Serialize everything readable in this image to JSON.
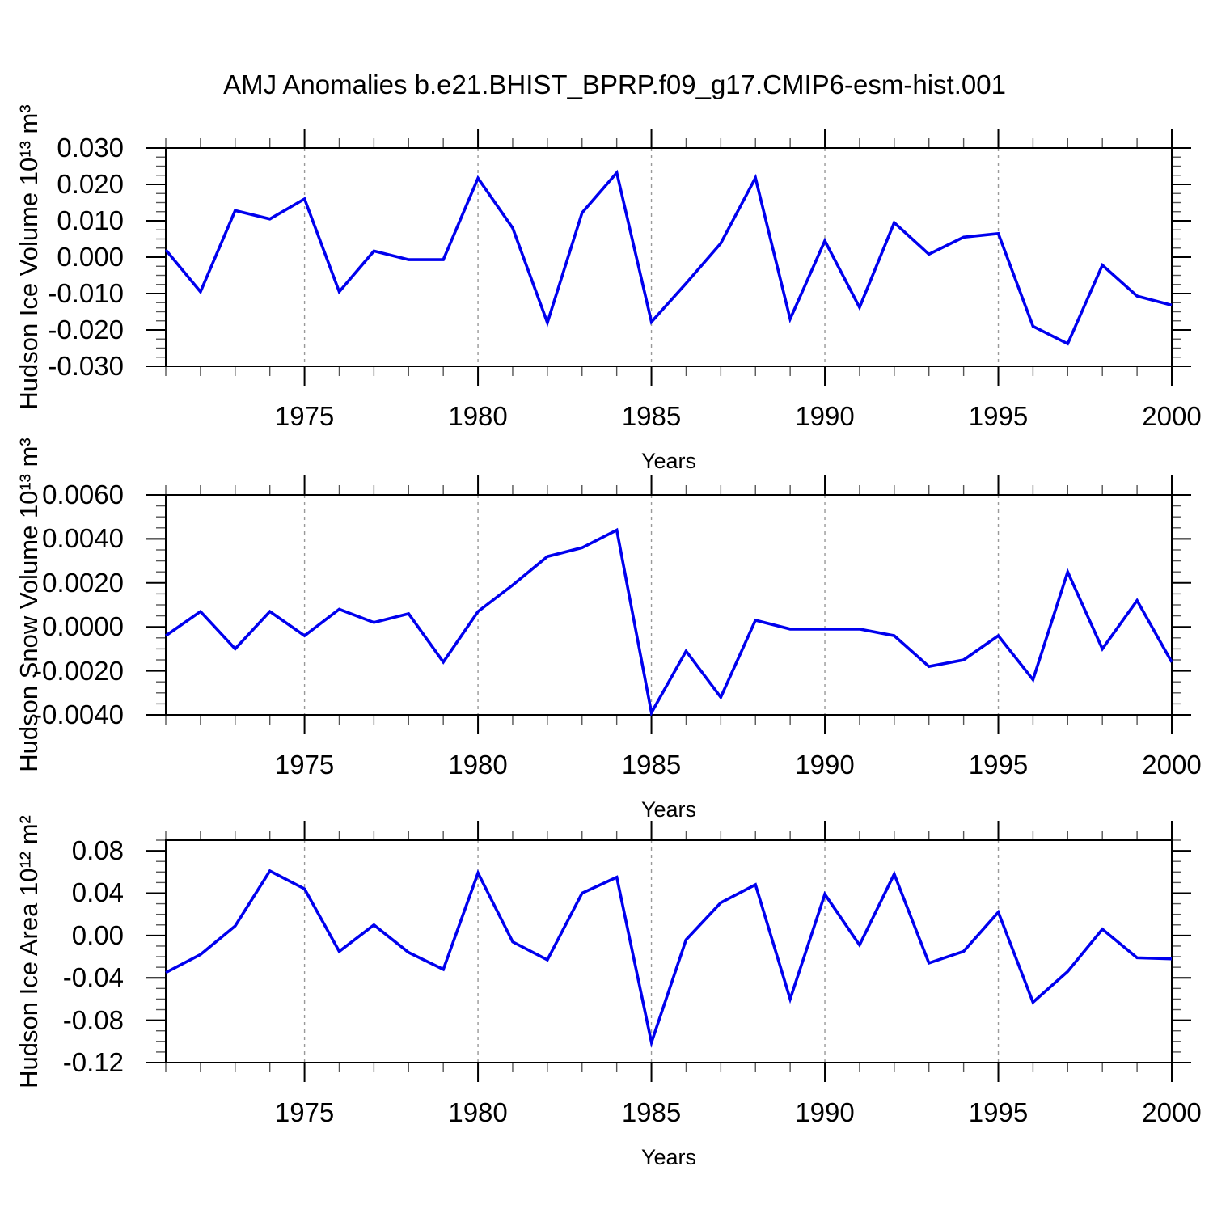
{
  "title": "AMJ Anomalies b.e21.BHIST_BPRP.f09_g17.CMIP6-esm-hist.001",
  "colors": {
    "line": "#0000ee",
    "axis": "#000000",
    "grid": "#999999",
    "minor_tick": "#555555",
    "background": "#ffffff"
  },
  "chart_data": [
    {
      "type": "line",
      "ylabel": "Hudson Ice Volume 10¹³ m³",
      "xlabel": "Years",
      "x": [
        1971,
        1972,
        1973,
        1974,
        1975,
        1976,
        1977,
        1978,
        1979,
        1980,
        1981,
        1982,
        1983,
        1984,
        1985,
        1986,
        1987,
        1988,
        1989,
        1990,
        1991,
        1992,
        1993,
        1994,
        1995,
        1996,
        1997,
        1998,
        1999,
        2000
      ],
      "values": [
        0.002,
        -0.0095,
        0.0128,
        0.0105,
        0.016,
        -0.0095,
        0.0017,
        -0.0007,
        -0.0007,
        0.0217,
        0.008,
        -0.018,
        0.0122,
        0.0232,
        -0.0178,
        -0.0072,
        0.0038,
        0.0218,
        -0.017,
        0.0045,
        -0.0138,
        0.0095,
        0.0008,
        0.0055,
        0.0065,
        -0.019,
        -0.0238,
        -0.0022,
        -0.0107,
        -0.0132
      ],
      "xlim": [
        1971,
        2000
      ],
      "ylim": [
        -0.03,
        0.03
      ],
      "ytick_values": [
        0.03,
        0.02,
        0.01,
        0.0,
        -0.01,
        -0.02,
        -0.03
      ],
      "ytick_labels": [
        "0.030",
        "0.020",
        "0.010",
        "0.000",
        "-0.010",
        "-0.020",
        "-0.030"
      ],
      "y_minor_step": 0.0025,
      "xtick_years": [
        1975,
        1980,
        1985,
        1990,
        1995,
        2000
      ],
      "xtick_labels": [
        "1975",
        "1980",
        "1985",
        "1990",
        "1995",
        "2000"
      ],
      "x_minor_step": 1,
      "grid_years": [
        1975,
        1980,
        1985,
        1990,
        1995
      ],
      "line_color": "#0000ee"
    },
    {
      "type": "line",
      "ylabel": "Hudson Snow Volume 10¹³ m³",
      "xlabel": "Years",
      "x": [
        1971,
        1972,
        1973,
        1974,
        1975,
        1976,
        1977,
        1978,
        1979,
        1980,
        1981,
        1982,
        1983,
        1984,
        1985,
        1986,
        1987,
        1988,
        1989,
        1990,
        1991,
        1992,
        1993,
        1994,
        1995,
        1996,
        1997,
        1998,
        1999,
        2000
      ],
      "values": [
        -0.0004,
        0.0007,
        -0.001,
        0.0007,
        -0.0004,
        0.0008,
        0.0002,
        0.0006,
        -0.0016,
        0.0007,
        0.0019,
        0.0032,
        0.0036,
        0.0044,
        -0.0039,
        -0.0011,
        -0.0032,
        0.0003,
        -0.0001,
        -0.0001,
        -0.0001,
        -0.0004,
        -0.0018,
        -0.0015,
        -0.0004,
        -0.0024,
        0.0025,
        -0.001,
        0.0012,
        -0.0016
      ],
      "xlim": [
        1971,
        2000
      ],
      "ylim": [
        -0.004,
        0.006
      ],
      "ytick_values": [
        0.006,
        0.004,
        0.002,
        0.0,
        -0.002,
        -0.004
      ],
      "ytick_labels": [
        "0.0060",
        "0.0040",
        "0.0020",
        "0.0000",
        "-0.0020",
        "-0.0040"
      ],
      "y_minor_step": 0.0005,
      "xtick_years": [
        1975,
        1980,
        1985,
        1990,
        1995,
        2000
      ],
      "xtick_labels": [
        "1975",
        "1980",
        "1985",
        "1990",
        "1995",
        "2000"
      ],
      "x_minor_step": 1,
      "grid_years": [
        1975,
        1980,
        1985,
        1990,
        1995
      ],
      "line_color": "#0000ee"
    },
    {
      "type": "line",
      "ylabel": "Hudson Ice Area 10¹² m²",
      "xlabel": "Years",
      "x": [
        1971,
        1972,
        1973,
        1974,
        1975,
        1976,
        1977,
        1978,
        1979,
        1980,
        1981,
        1982,
        1983,
        1984,
        1985,
        1986,
        1987,
        1988,
        1989,
        1990,
        1991,
        1992,
        1993,
        1994,
        1995,
        1996,
        1997,
        1998,
        1999,
        2000
      ],
      "values": [
        -0.035,
        -0.018,
        0.009,
        0.061,
        0.044,
        -0.015,
        0.01,
        -0.016,
        -0.032,
        0.059,
        -0.006,
        -0.023,
        0.04,
        0.055,
        -0.101,
        -0.004,
        0.031,
        0.048,
        -0.06,
        0.039,
        -0.009,
        0.058,
        -0.026,
        -0.015,
        0.022,
        -0.063,
        -0.034,
        0.006,
        -0.021,
        -0.022
      ],
      "xlim": [
        1971,
        2000
      ],
      "ylim": [
        -0.12,
        0.09
      ],
      "ytick_values": [
        0.08,
        0.04,
        0.0,
        -0.04,
        -0.08,
        -0.12
      ],
      "ytick_labels": [
        "0.08",
        "0.04",
        "0.00",
        "-0.04",
        "-0.08",
        "-0.12"
      ],
      "y_minor_step": 0.01,
      "xtick_years": [
        1975,
        1980,
        1985,
        1990,
        1995,
        2000
      ],
      "xtick_labels": [
        "1975",
        "1980",
        "1985",
        "1990",
        "1995",
        "2000"
      ],
      "x_minor_step": 1,
      "grid_years": [
        1975,
        1980,
        1985,
        1990,
        1995
      ],
      "line_color": "#0000ee"
    }
  ]
}
